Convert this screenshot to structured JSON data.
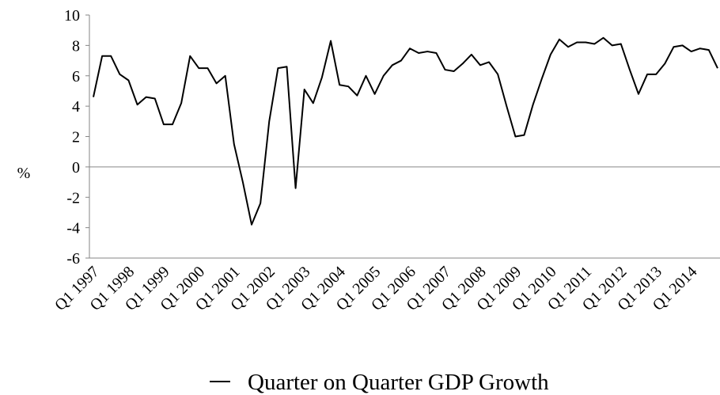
{
  "chart_data": {
    "type": "line",
    "y_label": "%",
    "categories": [
      "Q1 1997",
      null,
      null,
      null,
      "Q1 1998",
      null,
      null,
      null,
      "Q1 1999",
      null,
      null,
      null,
      "Q1 2000",
      null,
      null,
      null,
      "Q1 2001",
      null,
      null,
      null,
      "Q1 2002",
      null,
      null,
      null,
      "Q1 2003",
      null,
      null,
      null,
      "Q1 2004",
      null,
      null,
      null,
      "Q1 2005",
      null,
      null,
      null,
      "Q1 2006",
      null,
      null,
      null,
      "Q1 2007",
      null,
      null,
      null,
      "Q1 2008",
      null,
      null,
      null,
      "Q1 2009",
      null,
      null,
      null,
      "Q1 2010",
      null,
      null,
      null,
      "Q1 2011",
      null,
      null,
      null,
      "Q1 2012",
      null,
      null,
      null,
      "Q1 2013",
      null,
      null,
      null,
      "Q1 2014",
      null,
      null,
      null
    ],
    "series": [
      {
        "name": "Quarter on Quarter GDP Growth",
        "color": "#000000",
        "values": [
          4.6,
          7.3,
          7.3,
          6.1,
          5.7,
          4.1,
          4.6,
          4.5,
          2.8,
          2.8,
          4.2,
          7.3,
          6.5,
          6.5,
          5.5,
          6.0,
          1.5,
          -1.0,
          -3.8,
          -2.4,
          3.0,
          6.5,
          6.6,
          -1.4,
          5.1,
          4.2,
          5.9,
          8.3,
          5.4,
          5.3,
          4.7,
          6.0,
          4.8,
          6.0,
          6.7,
          7.0,
          7.8,
          7.5,
          7.6,
          7.5,
          6.4,
          6.3,
          6.8,
          7.4,
          6.7,
          6.9,
          6.1,
          4.0,
          2.0,
          2.1,
          4.1,
          5.8,
          7.4,
          8.4,
          7.9,
          8.2,
          8.2,
          8.1,
          8.5,
          8.0,
          8.1,
          6.4,
          4.8,
          6.1,
          6.1,
          6.8,
          7.9,
          8.0,
          7.6,
          7.8,
          7.7,
          6.5
        ]
      }
    ],
    "ylim": [
      -6,
      10
    ],
    "yticks": [
      -6,
      -4,
      -2,
      0,
      2,
      4,
      6,
      8,
      10
    ],
    "legend": "bottom"
  }
}
